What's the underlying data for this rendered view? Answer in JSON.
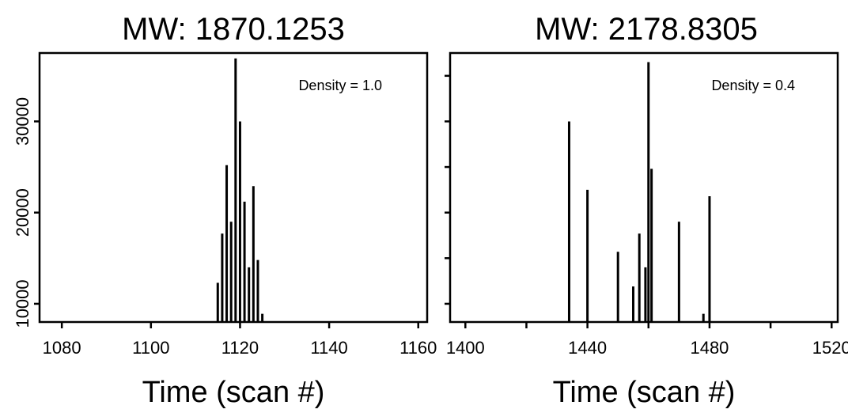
{
  "chart_data": [
    {
      "type": "bar",
      "title": "MW: 1870.1253",
      "xlabel": "Time (scan #)",
      "ylabel": "",
      "annotation": "Density = 1.0",
      "xlim": [
        1075,
        1162
      ],
      "ylim": [
        8000,
        37500
      ],
      "x_ticks": [
        1080,
        1100,
        1120,
        1140,
        1160
      ],
      "x_tick_labels": [
        "1080",
        "1100",
        "1120",
        "1140",
        "1160"
      ],
      "y_ticks": [
        10000,
        20000,
        30000
      ],
      "y_tick_labels": [
        "10000",
        "20000",
        "30000"
      ],
      "x": [
        1115,
        1116,
        1117,
        1118,
        1119,
        1120,
        1121,
        1122,
        1123,
        1124,
        1125
      ],
      "values": [
        12300,
        17700,
        25200,
        19000,
        36900,
        30000,
        21200,
        14000,
        22900,
        14800,
        8900
      ]
    },
    {
      "type": "bar",
      "title": "MW: 2178.8305",
      "xlabel": "Time (scan #)",
      "ylabel": "",
      "annotation": "Density = 0.4",
      "xlim": [
        1395,
        1522
      ],
      "ylim": [
        8000,
        37500
      ],
      "x_ticks": [
        1400,
        1420,
        1440,
        1460,
        1480,
        1500,
        1520
      ],
      "x_tick_labels": [
        "1400",
        "",
        "1440",
        "",
        "1480",
        "",
        "1520"
      ],
      "y_ticks": [
        10000,
        15000,
        20000,
        25000,
        30000,
        35000
      ],
      "y_tick_labels": [
        "",
        "",
        "",
        "",
        "",
        ""
      ],
      "x": [
        1434,
        1440,
        1450,
        1455,
        1457,
        1459,
        1460,
        1461,
        1470,
        1478,
        1480
      ],
      "values": [
        30000,
        22500,
        15700,
        11900,
        17700,
        14000,
        36500,
        24800,
        19000,
        8900,
        21800
      ]
    }
  ]
}
